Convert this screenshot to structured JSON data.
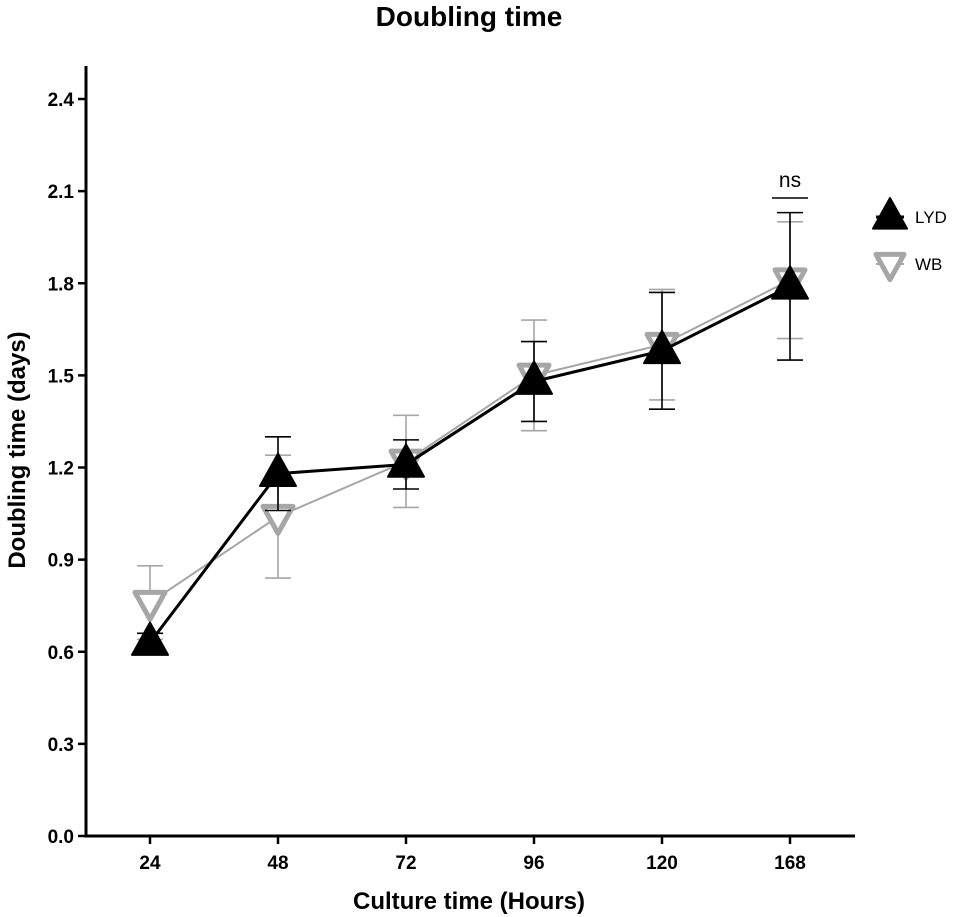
{
  "chart_data": {
    "type": "line",
    "title": "Doubling time",
    "xlabel": "Culture time (Hours)",
    "ylabel": "Doubling time (days)",
    "categories": [
      "24",
      "48",
      "72",
      "96",
      "120",
      "168"
    ],
    "ylim": [
      0,
      2.5
    ],
    "yticks": [
      "0.0",
      "0.3",
      "0.6",
      "0.9",
      "1.2",
      "1.5",
      "1.8",
      "2.1",
      "2.4"
    ],
    "grid": false,
    "legend_position": "right",
    "series": [
      {
        "name": "LYD",
        "marker": "triangle-up",
        "color": "#000000",
        "values": [
          0.63,
          1.18,
          1.21,
          1.48,
          1.58,
          1.79
        ],
        "error": [
          0.03,
          0.12,
          0.08,
          0.13,
          0.19,
          0.24
        ]
      },
      {
        "name": "WB",
        "marker": "triangle-down",
        "color": "#a6a6a6",
        "values": [
          0.76,
          1.04,
          1.22,
          1.5,
          1.6,
          1.81
        ],
        "error": [
          0.12,
          0.2,
          0.15,
          0.18,
          0.18,
          0.19
        ]
      }
    ],
    "annotations": [
      {
        "text": "ns",
        "category": "168"
      }
    ]
  }
}
